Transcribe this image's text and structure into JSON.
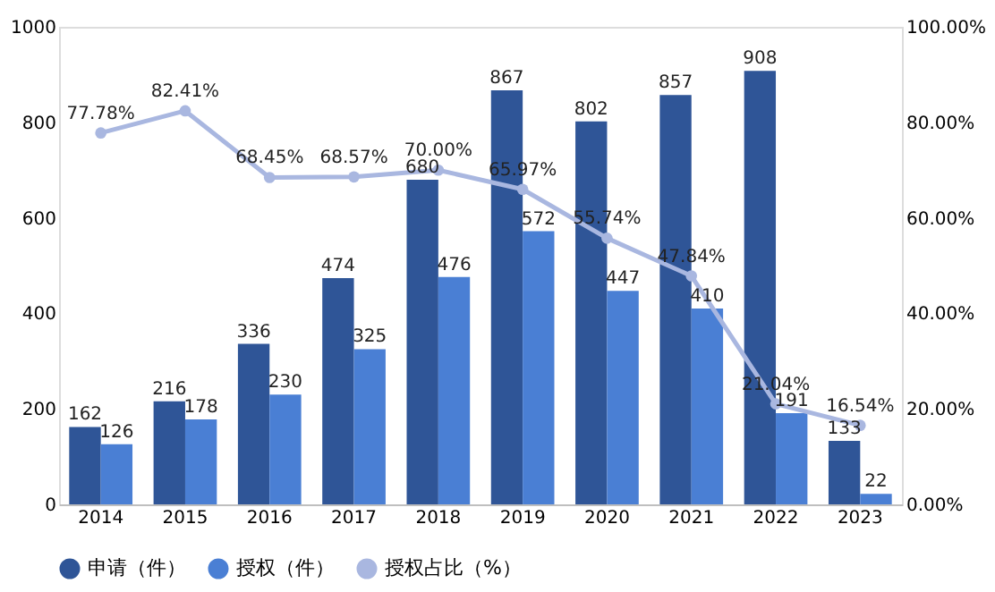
{
  "chart_data": {
    "type": "bar",
    "categories": [
      "2014",
      "2015",
      "2016",
      "2017",
      "2018",
      "2019",
      "2020",
      "2021",
      "2022",
      "2023"
    ],
    "series": [
      {
        "name": "申请（件）",
        "color": "#2f5597",
        "values": [
          162,
          216,
          336,
          474,
          680,
          867,
          802,
          857,
          908,
          133
        ]
      },
      {
        "name": "授权（件）",
        "color": "#4a7fd4",
        "values": [
          126,
          178,
          230,
          325,
          476,
          572,
          447,
          410,
          191,
          22
        ]
      },
      {
        "name": "授权占比（%）",
        "type": "line",
        "axis": "y2",
        "color": "#a9b7e0",
        "marker": "circle",
        "values": [
          77.78,
          82.41,
          68.45,
          68.57,
          70.0,
          65.97,
          55.74,
          47.84,
          21.04,
          16.54
        ],
        "value_labels": [
          "77.78%",
          "82.41%",
          "68.45%",
          "68.57%",
          "70.00%",
          "65.97%",
          "55.74%",
          "47.84%",
          "21.04%",
          "16.54%"
        ]
      }
    ],
    "data_labels": true,
    "ylim": [
      0,
      1000
    ],
    "yticks": [
      0,
      200,
      400,
      600,
      800,
      1000
    ],
    "y2lim": [
      0,
      100
    ],
    "y2ticks": [
      {
        "value": 0,
        "label": "0.00%"
      },
      {
        "value": 20,
        "label": "20.00%"
      },
      {
        "value": 40,
        "label": "40.00%"
      },
      {
        "value": 60,
        "label": "60.00%"
      },
      {
        "value": 80,
        "label": "80.00%"
      },
      {
        "value": 100,
        "label": "100.00%"
      }
    ],
    "grid": false,
    "legend": "bottom"
  }
}
